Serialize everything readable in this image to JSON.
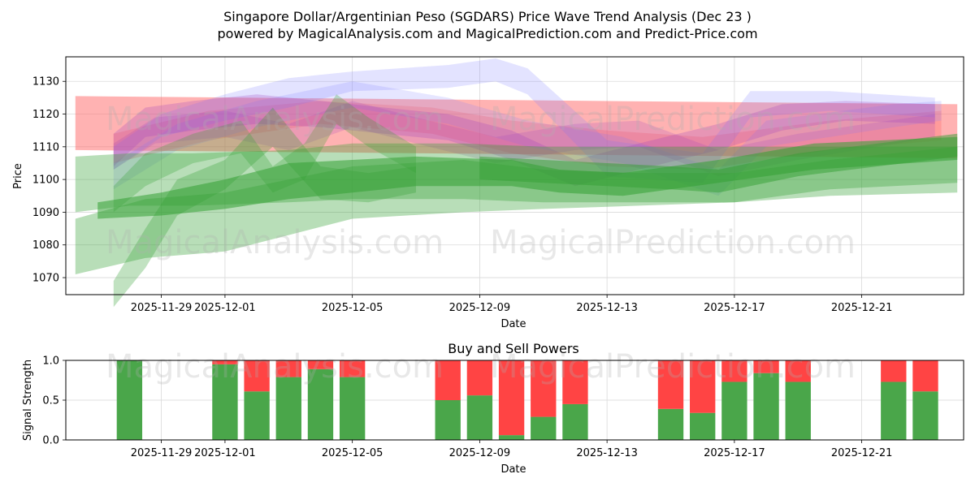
{
  "figure": {
    "title_line1": "Singapore Dollar/Argentinian Peso (SGDARS) Price Wave Trend Analysis (Dec 23 )",
    "title_line2": "powered by MagicalAnalysis.com and MagicalPrediction.com and Predict-Price.com",
    "watermarks": [
      "MagicalAnalysis.com",
      "MagicalPrediction.com"
    ]
  },
  "colors": {
    "red_band": "#ff6666",
    "green_band": "#33a033",
    "blue_band": "#8080ff",
    "purple_band": "#a040c0",
    "buy": "#4aa64a",
    "sell": "#ff4444",
    "grid": "#d9d9d9"
  },
  "chart_data": [
    {
      "type": "area",
      "title": "",
      "xlabel": "Date",
      "ylabel": "Price",
      "ylim": [
        1064.8,
        1137.5
      ],
      "x_domain_days": [
        0.0,
        28.2
      ],
      "x_tick_labels": [
        "2025-11-29",
        "2025-12-01",
        "2025-12-05",
        "2025-12-09",
        "2025-12-13",
        "2025-12-17",
        "2025-12-21"
      ],
      "x_tick_days": [
        3,
        5,
        9,
        13,
        17,
        21,
        25
      ],
      "y_ticks": [
        1070,
        1080,
        1090,
        1100,
        1110,
        1120,
        1130
      ],
      "grid": true,
      "bands": [
        {
          "color": "red",
          "opacity": 0.5,
          "x": [
            0.3,
            28.0
          ],
          "upper": [
            1125.5,
            1123.0
          ],
          "lower": [
            1109.0,
            1106.5
          ]
        },
        {
          "color": "red",
          "opacity": 0.3,
          "x": [
            1.5,
            4.5,
            8.0,
            11.5,
            14.0,
            17.0,
            20.0,
            24.0,
            27.5
          ],
          "upper": [
            1114,
            1121,
            1124,
            1122,
            1118,
            1115,
            1113,
            1118,
            1121
          ],
          "lower": [
            1105,
            1112,
            1117,
            1114,
            1108,
            1104,
            1103,
            1109,
            1112
          ]
        },
        {
          "color": "blue",
          "opacity": 0.22,
          "x": [
            1.5,
            3.0,
            5.0,
            7.0,
            9.0,
            12.0,
            13.5,
            14.5,
            17.0,
            20.0,
            21.5,
            24.0,
            27.3
          ],
          "upper": [
            1110,
            1120,
            1126,
            1131,
            1133,
            1135,
            1137,
            1134,
            1112,
            1108,
            1127,
            1127,
            1125
          ],
          "lower": [
            1103,
            1113,
            1118,
            1122,
            1127,
            1128,
            1130,
            1126,
            1101,
            1099,
            1119,
            1121,
            1119
          ]
        },
        {
          "color": "blue",
          "opacity": 0.2,
          "x": [
            1.5,
            3.5,
            6.0,
            9.0,
            12.0,
            14.5,
            17.5,
            20.5,
            22.0,
            26.0,
            27.5
          ],
          "upper": [
            1105,
            1117,
            1124,
            1130,
            1125,
            1118,
            1113,
            1103,
            1118,
            1123,
            1124
          ],
          "lower": [
            1097,
            1109,
            1116,
            1122,
            1117,
            1110,
            1105,
            1095,
            1110,
            1116,
            1118
          ]
        },
        {
          "color": "purple",
          "opacity": 0.25,
          "x": [
            1.5,
            2.5,
            4.0,
            6.0,
            8.0,
            10.0,
            12.0,
            14.0,
            16.0,
            18.0,
            20.5,
            22.5,
            24.5,
            27.3
          ],
          "upper": [
            1114,
            1122,
            1124,
            1126,
            1124,
            1122,
            1120,
            1115,
            1106,
            1111,
            1117,
            1123,
            1124,
            1123
          ],
          "lower": [
            1104,
            1113,
            1115,
            1117,
            1116,
            1114,
            1112,
            1106,
            1098,
            1103,
            1109,
            1115,
            1118,
            1117
          ]
        },
        {
          "color": "purple",
          "opacity": 0.2,
          "x": [
            1.5,
            2.8,
            5.0,
            7.0,
            9.0,
            11.0,
            13.5,
            16.0,
            18.0,
            20.5,
            23.0,
            27.3
          ],
          "upper": [
            1111,
            1119,
            1121,
            1117,
            1124,
            1119,
            1113,
            1117,
            1118,
            1109,
            1114,
            1120
          ],
          "lower": [
            1103,
            1111,
            1113,
            1109,
            1116,
            1111,
            1105,
            1109,
            1110,
            1101,
            1106,
            1113
          ]
        },
        {
          "color": "green",
          "opacity": 0.35,
          "x": [
            0.3,
            2.0,
            4.0,
            7.0,
            9.0,
            12.5,
            15.0,
            18.0,
            21.0,
            24.0,
            28.0
          ],
          "upper": [
            1107,
            1108,
            1108,
            1109,
            1111,
            1111,
            1110,
            1110,
            1110,
            1110,
            1110
          ],
          "lower": [
            1090,
            1092,
            1092,
            1093,
            1094,
            1094,
            1093,
            1093,
            1093,
            1095,
            1096
          ]
        },
        {
          "color": "green",
          "opacity": 0.35,
          "x": [
            0.3,
            2.5,
            5.0,
            9.0,
            12.5,
            15.0,
            18.0,
            21.0,
            24.0,
            28.0
          ],
          "upper": [
            1088,
            1094,
            1096,
            1104,
            1106,
            1103,
            1102,
            1102,
            1106,
            1110
          ],
          "lower": [
            1071,
            1076,
            1078,
            1088,
            1090,
            1091,
            1092,
            1093,
            1097,
            1099
          ]
        },
        {
          "color": "green",
          "opacity": 0.3,
          "x": [
            1.5,
            2.5,
            3.5,
            5.0,
            6.5,
            8.0,
            9.5,
            11.0
          ],
          "upper": [
            1069,
            1085,
            1100,
            1106,
            1122,
            1104,
            1102,
            1104
          ],
          "lower": [
            1061,
            1073,
            1089,
            1097,
            1110,
            1094,
            1093,
            1096
          ]
        },
        {
          "color": "green",
          "opacity": 0.28,
          "x": [
            1.5,
            2.5,
            4.0,
            5.5,
            6.5,
            7.5,
            8.5,
            9.5,
            11.0
          ],
          "upper": [
            1098,
            1108,
            1114,
            1118,
            1104,
            1111,
            1126,
            1119,
            1110
          ],
          "lower": [
            1090,
            1098,
            1105,
            1108,
            1096,
            1100,
            1117,
            1110,
            1102
          ]
        },
        {
          "color": "green",
          "opacity": 0.55,
          "x": [
            1.0,
            3.0,
            5.0,
            7.0,
            9.0,
            11.0,
            14.0,
            15.5,
            17.5,
            20.5,
            23.5,
            28.0
          ],
          "upper": [
            1093,
            1096,
            1100,
            1105,
            1106,
            1107,
            1106,
            1103,
            1102,
            1106,
            1111,
            1113
          ],
          "lower": [
            1088,
            1089,
            1091,
            1094,
            1096,
            1098,
            1098,
            1096,
            1095,
            1099,
            1103,
            1106
          ]
        },
        {
          "color": "green",
          "opacity": 0.5,
          "x": [
            13.0,
            15.0,
            17.0,
            19.0,
            20.5,
            23.0,
            28.0
          ],
          "upper": [
            1107,
            1106,
            1105,
            1104,
            1103,
            1108,
            1114
          ],
          "lower": [
            1100,
            1099,
            1098,
            1097,
            1096,
            1101,
            1107
          ]
        }
      ]
    },
    {
      "type": "bar",
      "title": "Buy and Sell Powers",
      "xlabel": "Date",
      "ylabel": "Signal Strength",
      "ylim": [
        0,
        1.0
      ],
      "x_domain_days": [
        0.0,
        28.2
      ],
      "x_tick_labels": [
        "2025-11-29",
        "2025-12-01",
        "2025-12-05",
        "2025-12-09",
        "2025-12-13",
        "2025-12-17",
        "2025-12-21"
      ],
      "x_tick_days": [
        3,
        5,
        9,
        13,
        17,
        21,
        25
      ],
      "y_ticks": [
        0.0,
        0.5,
        1.0
      ],
      "grid": true,
      "series": [
        {
          "name": "Buy",
          "x_days": [
            2,
            5,
            6,
            7,
            8,
            9,
            12,
            13,
            14,
            15,
            16,
            19,
            20,
            21,
            22,
            23,
            26,
            27
          ],
          "values": [
            1.0,
            0.95,
            0.61,
            0.79,
            0.89,
            0.79,
            0.5,
            0.56,
            0.06,
            0.29,
            0.45,
            0.39,
            0.34,
            0.73,
            0.84,
            0.73,
            0.73,
            0.61
          ]
        },
        {
          "name": "Sell",
          "x_days": [
            2,
            5,
            6,
            7,
            8,
            9,
            12,
            13,
            14,
            15,
            16,
            19,
            20,
            21,
            22,
            23,
            26,
            27
          ],
          "values": [
            0.0,
            0.05,
            0.39,
            0.21,
            0.11,
            0.21,
            0.5,
            0.44,
            0.94,
            0.71,
            0.55,
            0.61,
            0.66,
            0.27,
            0.16,
            0.27,
            0.27,
            0.39
          ]
        }
      ]
    }
  ]
}
